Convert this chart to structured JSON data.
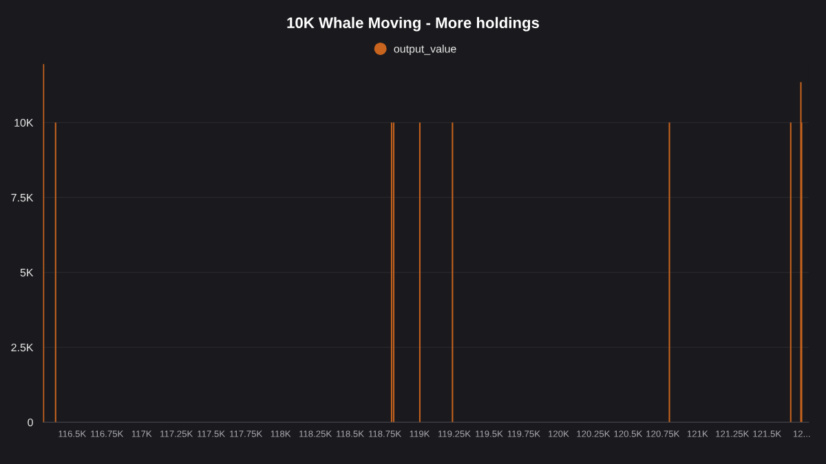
{
  "chart_data": {
    "type": "bar",
    "title": "10K Whale Moving - More holdings",
    "x": [
      116294,
      116381,
      118799,
      118814,
      119002,
      119237,
      120798,
      121671,
      121744,
      121749
    ],
    "series": [
      {
        "name": "output_value",
        "color": "#c8641e",
        "values": [
          11950,
          10000,
          10000,
          10000,
          10000,
          10000,
          10000,
          10000,
          11350,
          10000
        ]
      }
    ],
    "xlim": [
      116290,
      121800
    ],
    "xticks": [
      {
        "value": 116500,
        "label": "116.5K"
      },
      {
        "value": 116750,
        "label": "116.75K"
      },
      {
        "value": 117000,
        "label": "117K"
      },
      {
        "value": 117250,
        "label": "117.25K"
      },
      {
        "value": 117500,
        "label": "117.5K"
      },
      {
        "value": 117750,
        "label": "117.75K"
      },
      {
        "value": 118000,
        "label": "118K"
      },
      {
        "value": 118250,
        "label": "118.25K"
      },
      {
        "value": 118500,
        "label": "118.5K"
      },
      {
        "value": 118750,
        "label": "118.75K"
      },
      {
        "value": 119000,
        "label": "119K"
      },
      {
        "value": 119250,
        "label": "119.25K"
      },
      {
        "value": 119500,
        "label": "119.5K"
      },
      {
        "value": 119750,
        "label": "119.75K"
      },
      {
        "value": 120000,
        "label": "120K"
      },
      {
        "value": 120250,
        "label": "120.25K"
      },
      {
        "value": 120500,
        "label": "120.5K"
      },
      {
        "value": 120750,
        "label": "120.75K"
      },
      {
        "value": 121000,
        "label": "121K"
      },
      {
        "value": 121250,
        "label": "121.25K"
      },
      {
        "value": 121500,
        "label": "121.5K"
      },
      {
        "value": 121750,
        "label": "12..."
      }
    ],
    "ylim": [
      0,
      12000
    ],
    "yticks": [
      0,
      {
        "value": 2500,
        "label": "2.5K"
      },
      {
        "value": 5000,
        "label": "5K"
      },
      {
        "value": 7500,
        "label": "7.5K"
      },
      {
        "value": 10000,
        "label": "10K"
      }
    ],
    "grid": "y",
    "legend": "top",
    "marker": "circle"
  }
}
